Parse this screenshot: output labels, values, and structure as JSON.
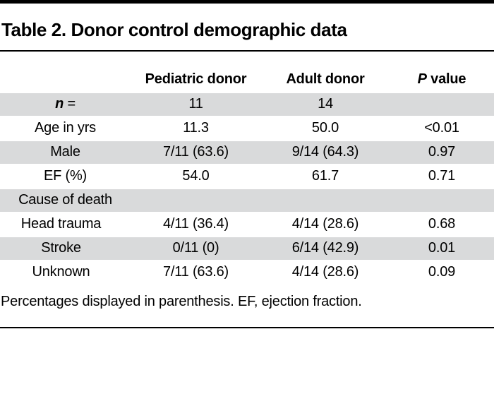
{
  "title": "Table 2. Donor control demographic data",
  "table": {
    "header": {
      "pediatric": "Pediatric donor",
      "adult": "Adult donor",
      "p_italic": "P",
      "p_rest": " value"
    },
    "rows": [
      {
        "label_italic": "n",
        "label_rest": " =",
        "pediatric": "11",
        "adult": "14",
        "p": ""
      },
      {
        "label": "Age in yrs",
        "pediatric": "11.3",
        "adult": "50.0",
        "p": "<0.01"
      },
      {
        "label": "Male",
        "pediatric": "7/11 (63.6)",
        "adult": "9/14 (64.3)",
        "p": "0.97"
      },
      {
        "label": "EF (%)",
        "pediatric": "54.0",
        "adult": "61.7",
        "p": "0.71"
      },
      {
        "label": "Cause of death",
        "pediatric": "",
        "adult": "",
        "p": ""
      },
      {
        "label": "Head trauma",
        "pediatric": "4/11 (36.4)",
        "adult": "4/14 (28.6)",
        "p": "0.68"
      },
      {
        "label": "Stroke",
        "pediatric": "0/11 (0)",
        "adult": "6/14 (42.9)",
        "p": "0.01"
      },
      {
        "label": "Unknown",
        "pediatric": "7/11 (63.6)",
        "adult": "4/14 (28.6)",
        "p": "0.09"
      }
    ]
  },
  "footnote": "Percentages displayed in parenthesis. EF, ejection fraction.",
  "colors": {
    "shaded_row": "#d9dadb",
    "rule": "#000000",
    "text": "#000000"
  }
}
